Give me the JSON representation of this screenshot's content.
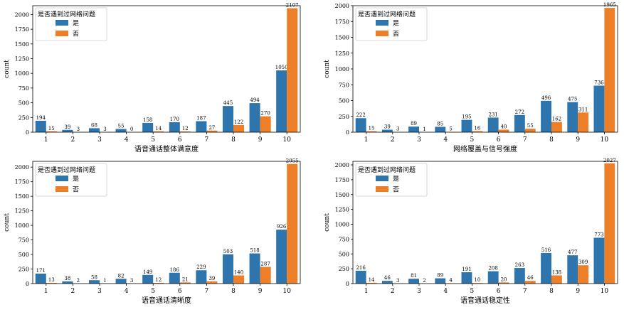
{
  "colors": {
    "yes": "#2e75ad",
    "no": "#ec7f27"
  },
  "chart_data": [
    {
      "type": "bar",
      "categories": [
        "1",
        "2",
        "3",
        "4",
        "5",
        "6",
        "7",
        "8",
        "9",
        "10"
      ],
      "xlabel": "语音通话整体满意度",
      "ylabel": "count",
      "ylim": [
        0,
        2150
      ],
      "yticks": [
        0,
        250,
        500,
        750,
        1000,
        1250,
        1500,
        1750,
        2000
      ],
      "legend_title": "是否遇到过网络问题",
      "legend_position": "upper-left",
      "series": [
        {
          "name": "是",
          "values": [
            194,
            39,
            68,
            55,
            158,
            170,
            187,
            445,
            494,
            1050
          ]
        },
        {
          "name": "否",
          "values": [
            15,
            3,
            3,
            0,
            14,
            12,
            27,
            122,
            270,
            2107
          ]
        }
      ]
    },
    {
      "type": "bar",
      "categories": [
        "1",
        "2",
        "3",
        "4",
        "5",
        "6",
        "7",
        "8",
        "9",
        "10"
      ],
      "xlabel": "网络覆盖与信号强度",
      "ylabel": "count",
      "ylim": [
        0,
        2000
      ],
      "yticks": [
        0,
        250,
        500,
        750,
        1000,
        1250,
        1500,
        1750,
        2000
      ],
      "legend_title": "是否遇到过网络问题",
      "legend_position": "upper-left",
      "series": [
        {
          "name": "是",
          "values": [
            222,
            39,
            89,
            85,
            195,
            231,
            272,
            496,
            475,
            736
          ]
        },
        {
          "name": "否",
          "values": [
            15,
            3,
            1,
            5,
            16,
            40,
            55,
            162,
            311,
            1965
          ]
        }
      ]
    },
    {
      "type": "bar",
      "categories": [
        "1",
        "2",
        "3",
        "4",
        "5",
        "6",
        "7",
        "8",
        "9",
        "10"
      ],
      "xlabel": "语音通话清晰度",
      "ylabel": "count",
      "ylim": [
        0,
        2100
      ],
      "yticks": [
        0,
        250,
        500,
        750,
        1000,
        1250,
        1500,
        1750,
        2000
      ],
      "legend_title": "是否遇到过网络问题",
      "legend_position": "upper-left",
      "series": [
        {
          "name": "是",
          "values": [
            171,
            38,
            58,
            82,
            149,
            186,
            229,
            503,
            518,
            926
          ]
        },
        {
          "name": "否",
          "values": [
            13,
            2,
            1,
            3,
            12,
            21,
            39,
            140,
            287,
            2055
          ]
        }
      ]
    },
    {
      "type": "bar",
      "categories": [
        "1",
        "2",
        "3",
        "4",
        "5",
        "6",
        "7",
        "8",
        "9",
        "10"
      ],
      "xlabel": "语音通话稳定性",
      "ylabel": "count",
      "ylim": [
        0,
        2060
      ],
      "yticks": [
        0,
        250,
        500,
        750,
        1000,
        1250,
        1500,
        1750,
        2000
      ],
      "legend_title": "是否遇到过网络问题",
      "legend_position": "upper-left",
      "series": [
        {
          "name": "是",
          "values": [
            216,
            46,
            81,
            89,
            191,
            208,
            263,
            516,
            477,
            773
          ]
        },
        {
          "name": "否",
          "values": [
            14,
            3,
            2,
            4,
            10,
            20,
            46,
            138,
            309,
            2027
          ]
        }
      ]
    }
  ]
}
